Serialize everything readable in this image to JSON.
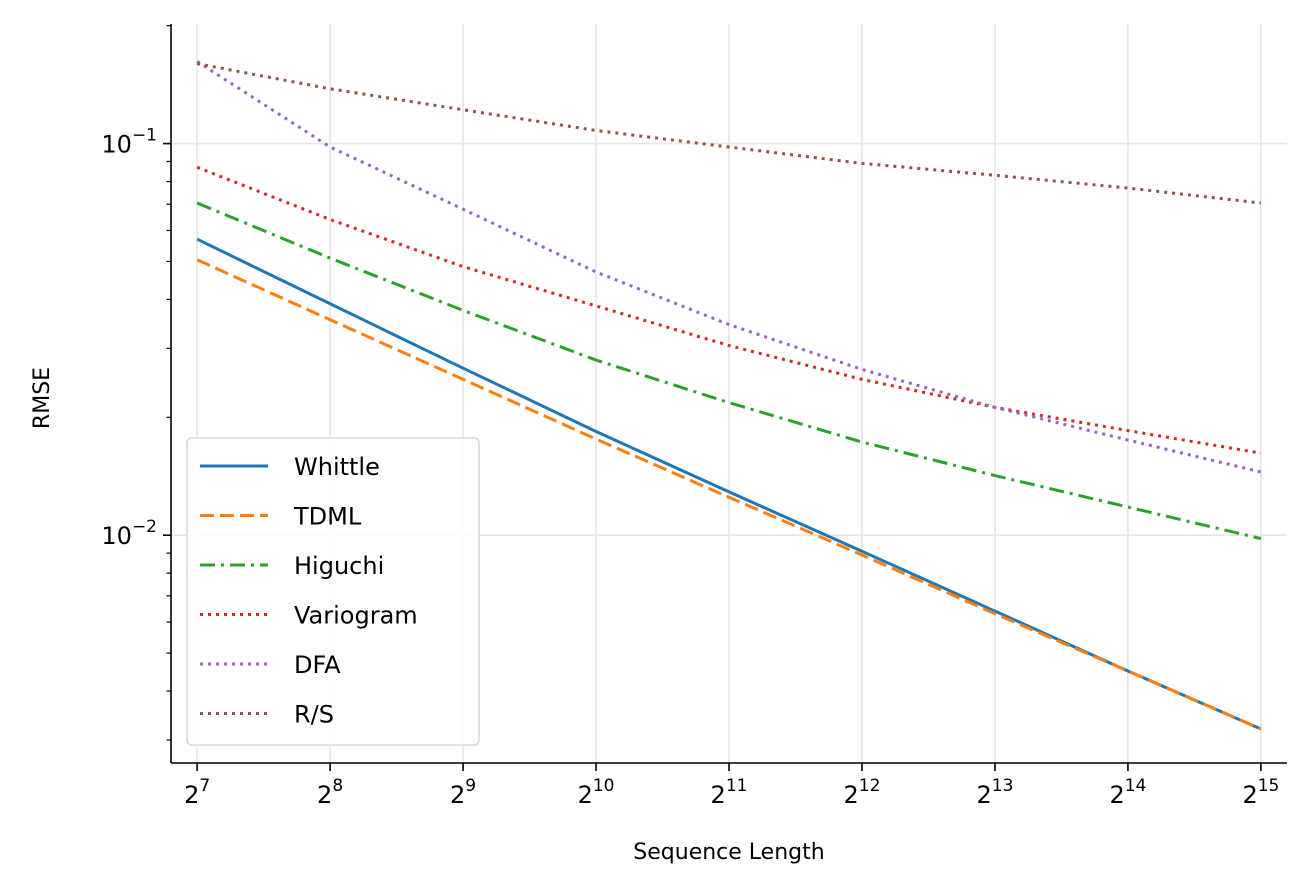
{
  "chart_data": {
    "type": "line",
    "xlabel": "Sequence Length",
    "ylabel": "RMSE",
    "x": [
      128,
      256,
      512,
      1024,
      2048,
      4096,
      8192,
      16384,
      32768
    ],
    "x_scale": "log2",
    "y_scale": "log10",
    "xlim": [
      111.7,
      37544
    ],
    "ylim": [
      0.00262,
      0.202
    ],
    "x_ticks": [
      {
        "value": 128,
        "base": "2",
        "exp": "7"
      },
      {
        "value": 256,
        "base": "2",
        "exp": "8"
      },
      {
        "value": 512,
        "base": "2",
        "exp": "9"
      },
      {
        "value": 1024,
        "base": "2",
        "exp": "10"
      },
      {
        "value": 2048,
        "base": "2",
        "exp": "11"
      },
      {
        "value": 4096,
        "base": "2",
        "exp": "12"
      },
      {
        "value": 8192,
        "base": "2",
        "exp": "13"
      },
      {
        "value": 16384,
        "base": "2",
        "exp": "14"
      },
      {
        "value": 32768,
        "base": "2",
        "exp": "15"
      }
    ],
    "y_ticks": [
      {
        "value": 0.1,
        "base": "10",
        "exp": "−1"
      },
      {
        "value": 0.01,
        "base": "10",
        "exp": "−2"
      }
    ],
    "grid": true,
    "legend_position": "lower-left",
    "series": [
      {
        "name": "Whittle",
        "color": "#1f77b4",
        "dash": "solid",
        "values": [
          0.057,
          0.039,
          0.0267,
          0.0184,
          0.0129,
          0.0091,
          0.0064,
          0.0045,
          0.0032
        ]
      },
      {
        "name": "TDML",
        "color": "#ff7f0e",
        "dash": "dashed",
        "values": [
          0.0505,
          0.0355,
          0.025,
          0.0176,
          0.0125,
          0.0089,
          0.0063,
          0.0045,
          0.0032
        ]
      },
      {
        "name": "Higuchi",
        "color": "#2ca02c",
        "dash": "dashdot",
        "values": [
          0.0705,
          0.051,
          0.0375,
          0.028,
          0.0218,
          0.0173,
          0.0142,
          0.0118,
          0.0098
        ]
      },
      {
        "name": "Variogram",
        "color": "#d62728",
        "dash": "dotted",
        "values": [
          0.087,
          0.064,
          0.0485,
          0.0385,
          0.0305,
          0.025,
          0.0212,
          0.0185,
          0.0162
        ]
      },
      {
        "name": "DFA",
        "color": "#9467bd",
        "dash": "dotted",
        "values": [
          0.162,
          0.098,
          0.068,
          0.047,
          0.0345,
          0.0265,
          0.0212,
          0.0175,
          0.0145
        ]
      },
      {
        "name": "R/S",
        "color": "#8c564b",
        "dash": "dotted",
        "values": [
          0.16,
          0.138,
          0.122,
          0.108,
          0.098,
          0.089,
          0.083,
          0.077,
          0.0705
        ]
      }
    ]
  }
}
